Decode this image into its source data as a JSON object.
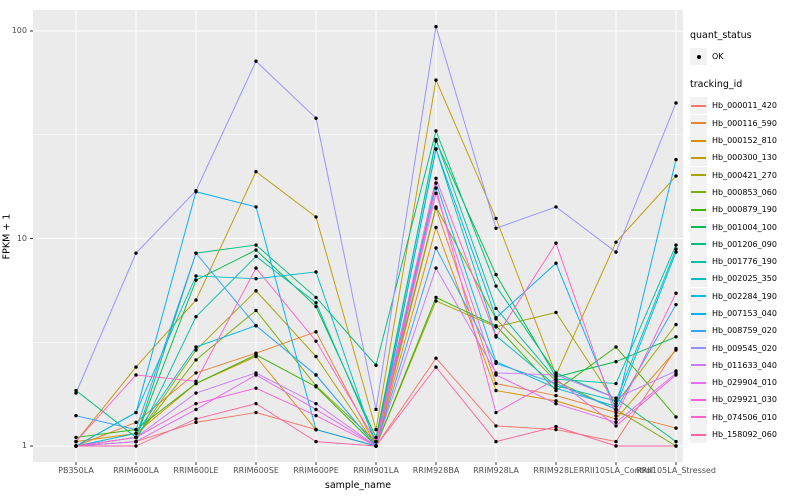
{
  "legend": {
    "quant_status_title": "quant_status",
    "ok_label": "OK",
    "tracking_id_title": "tracking_id"
  },
  "colors": {
    "panel_bg": "#EBEBEB",
    "grid_major": "#FFFFFF",
    "grid_minor": "#FFFFFF",
    "tick_mark": "#333333",
    "tick_label": "#4D4D4D",
    "point": "#000000",
    "legend_key_bg": "#F2F2F2"
  },
  "chart_data": {
    "type": "line",
    "title": "",
    "xlabel": "sample_name",
    "ylabel": "FPKM + 1",
    "y_scale": "log10",
    "ylim": [
      0.84,
      127
    ],
    "y_ticks": [
      {
        "label": "1",
        "value": 1
      },
      {
        "label": "10",
        "value": 10
      },
      {
        "label": "100",
        "value": 100
      }
    ],
    "y_minor": [
      3.1623,
      31.623
    ],
    "grid": true,
    "legend_position": "right",
    "point_legend_label": "OK",
    "categories": [
      "PB350LA",
      "RRIM600LA",
      "RRIM600LE",
      "RRIM600SE",
      "RRIM600PE",
      "RRIM901LA",
      "RRIM928BA",
      "RRIM928LA",
      "RRIM928LE",
      "RRII105LA_Control",
      "RRII105LA_Stressed"
    ],
    "series": [
      {
        "name": "Hb_000011_420",
        "color": "#F8766D",
        "values": [
          1.0,
          1.05,
          1.3,
          1.45,
          1.2,
          1.0,
          2.65,
          1.25,
          1.2,
          1.05,
          2.95
        ]
      },
      {
        "name": "Hb_000116_590",
        "color": "#EA8331",
        "values": [
          1.0,
          1.3,
          2.25,
          2.8,
          3.55,
          1.0,
          14.0,
          2.0,
          1.75,
          1.45,
          1.22
        ]
      },
      {
        "name": "Hb_000152_810",
        "color": "#D89000",
        "values": [
          1.05,
          1.15,
          2.0,
          2.7,
          1.2,
          1.0,
          11.3,
          1.85,
          1.65,
          1.35,
          2.9
        ]
      },
      {
        "name": "Hb_000300_130",
        "color": "#C09B00",
        "values": [
          1.05,
          2.4,
          5.05,
          21.0,
          12.7,
          1.2,
          58.0,
          12.5,
          2.2,
          9.6,
          20.0
        ]
      },
      {
        "name": "Hb_000421_270",
        "color": "#A3A500",
        "values": [
          1.0,
          1.1,
          2.9,
          5.6,
          2.7,
          1.0,
          5.0,
          3.75,
          4.4,
          1.6,
          3.85
        ]
      },
      {
        "name": "Hb_000853_060",
        "color": "#7CAE00",
        "values": [
          1.0,
          1.1,
          2.6,
          4.5,
          1.95,
          1.05,
          14.2,
          4.1,
          2.05,
          1.5,
          1.0
        ]
      },
      {
        "name": "Hb_000879_190",
        "color": "#39B600",
        "values": [
          1.1,
          1.2,
          2.0,
          2.75,
          1.93,
          1.0,
          5.2,
          3.8,
          1.85,
          3.0,
          1.38
        ]
      },
      {
        "name": "Hb_001004_100",
        "color": "#00BB4E",
        "values": [
          1.0,
          1.1,
          6.3,
          8.8,
          4.7,
          1.1,
          29.5,
          6.7,
          2.15,
          2.55,
          3.36
        ]
      },
      {
        "name": "Hb_001206_090",
        "color": "#00BF7D",
        "values": [
          1.85,
          1.1,
          8.5,
          9.3,
          5.2,
          2.45,
          33.0,
          5.9,
          2.25,
          1.7,
          1.05
        ]
      },
      {
        "name": "Hb_001776_190",
        "color": "#00C1A3",
        "values": [
          1.0,
          1.05,
          4.2,
          8.2,
          4.9,
          1.05,
          30.0,
          4.6,
          2.1,
          2.0,
          9.3
        ]
      },
      {
        "name": "Hb_002025_350",
        "color": "#00BFC4",
        "values": [
          1.0,
          1.45,
          6.6,
          6.4,
          6.9,
          1.0,
          27.0,
          3.4,
          1.95,
          1.65,
          8.9
        ]
      },
      {
        "name": "Hb_002284_190",
        "color": "#00BAE0",
        "values": [
          1.0,
          1.15,
          3.0,
          3.8,
          2.2,
          1.0,
          18.5,
          2.55,
          1.9,
          1.55,
          8.6
        ]
      },
      {
        "name": "Hb_007153_040",
        "color": "#00B0F6",
        "values": [
          1.0,
          1.45,
          16.8,
          14.2,
          1.2,
          1.0,
          27.0,
          4.15,
          7.6,
          1.5,
          24.0
        ]
      },
      {
        "name": "Hb_008759_020",
        "color": "#35A2FF",
        "values": [
          1.4,
          1.2,
          8.5,
          3.8,
          2.2,
          1.0,
          9.0,
          2.5,
          2.0,
          1.5,
          4.8
        ]
      },
      {
        "name": "Hb_009545_020",
        "color": "#9590FF",
        "values": [
          1.8,
          8.5,
          17.0,
          71.5,
          38.0,
          1.5,
          105.0,
          11.2,
          14.2,
          8.6,
          45.0
        ]
      },
      {
        "name": "Hb_011633_040",
        "color": "#C77CFF",
        "values": [
          1.0,
          1.1,
          1.8,
          2.25,
          1.6,
          1.0,
          7.2,
          2.25,
          2.2,
          1.7,
          2.3
        ]
      },
      {
        "name": "Hb_029904_010",
        "color": "#E76BF3",
        "values": [
          1.0,
          1.05,
          1.5,
          2.2,
          1.5,
          1.0,
          16.5,
          2.2,
          1.6,
          1.3,
          2.24
        ]
      },
      {
        "name": "Hb_029921_030",
        "color": "#FA62DB",
        "values": [
          1.0,
          1.1,
          1.6,
          1.9,
          1.4,
          1.0,
          17.5,
          1.45,
          2.1,
          1.25,
          2.2
        ]
      },
      {
        "name": "Hb_074506_010",
        "color": "#FF61CC",
        "values": [
          1.05,
          2.2,
          2.05,
          7.2,
          3.2,
          1.05,
          19.5,
          3.35,
          9.5,
          1.4,
          5.45
        ]
      },
      {
        "name": "Hb_158092_060",
        "color": "#FF67A4",
        "values": [
          1.0,
          1.0,
          1.35,
          1.6,
          1.05,
          1.0,
          2.4,
          1.05,
          1.24,
          1.0,
          1.0
        ]
      }
    ]
  }
}
